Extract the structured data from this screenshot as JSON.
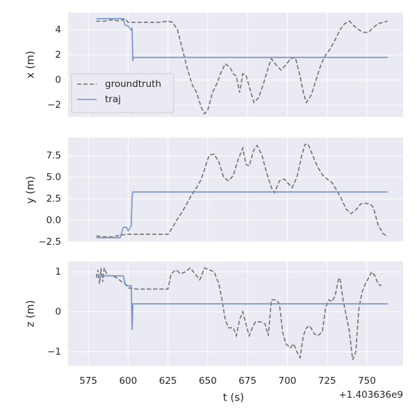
{
  "chart_data": [
    {
      "type": "line",
      "ylabel": "x (m)",
      "legend": "lower left",
      "xlim": [
        562.3,
        772.7
      ],
      "xticks": [
        575,
        600,
        625,
        650,
        675,
        700,
        725,
        750
      ],
      "ylim": [
        -2.94,
        5.39
      ],
      "yticks": [
        {
          "value": -2,
          "label": "−2"
        },
        0,
        2,
        4
      ],
      "grid": true,
      "series": [
        {
          "name": "groundtruth",
          "color": "#707070",
          "dash": true,
          "x": [
            580,
            585,
            590,
            595,
            598,
            600,
            605,
            610,
            615,
            620,
            625,
            628,
            631,
            634,
            637,
            640,
            643,
            646,
            648,
            650,
            653,
            656,
            658,
            661,
            664,
            666,
            668,
            670,
            672,
            674,
            676,
            679,
            682,
            685,
            688,
            690,
            693,
            696,
            699,
            702,
            705,
            708,
            710,
            712,
            715,
            718,
            721,
            724,
            727,
            730,
            733,
            736,
            739,
            742,
            745,
            748,
            751,
            754,
            757,
            760,
            763
          ],
          "values": [
            4.7,
            4.7,
            4.8,
            4.7,
            4.9,
            4.6,
            4.6,
            4.6,
            4.6,
            4.6,
            4.7,
            4.6,
            4.0,
            2.5,
            1.0,
            -0.3,
            -1.0,
            -2.2,
            -2.7,
            -2.4,
            -1.0,
            -0.2,
            0.5,
            1.3,
            1.0,
            0.5,
            0.3,
            -1.0,
            0.5,
            0.4,
            -0.5,
            -1.8,
            -1.4,
            -0.3,
            1.0,
            1.7,
            1.2,
            0.8,
            1.2,
            1.7,
            1.8,
            0.3,
            -1.0,
            -1.8,
            -1.2,
            0,
            1.2,
            2.0,
            2.5,
            3.2,
            4.0,
            4.5,
            4.7,
            4.3,
            4.0,
            3.8,
            3.8,
            4.2,
            4.5,
            4.6,
            4.7
          ]
        },
        {
          "name": "traj",
          "color": "#7190c9",
          "dash": false,
          "x": [
            580,
            597,
            598,
            600,
            602,
            602.5,
            603,
            603.2,
            763
          ],
          "values": [
            4.9,
            4.9,
            4.4,
            4.3,
            4.0,
            4.1,
            1.5,
            1.8,
            1.8
          ]
        }
      ]
    },
    {
      "type": "line",
      "ylabel": "y (m)",
      "xlim": [
        562.3,
        772.7
      ],
      "xticks": [
        575,
        600,
        625,
        650,
        675,
        700,
        725,
        750
      ],
      "ylim": [
        -2.5,
        9.6
      ],
      "yticks": [
        {
          "value": -2.5,
          "label": "−2.5"
        },
        {
          "value": 0,
          "label": "0.0"
        },
        {
          "value": 2.5,
          "label": "2.5"
        },
        {
          "value": 5,
          "label": "5.0"
        },
        {
          "value": 7.5,
          "label": "7.5"
        }
      ],
      "grid": true,
      "series": [
        {
          "color": "#707070",
          "dash": true,
          "x": [
            580,
            585,
            590,
            595,
            600,
            610,
            620,
            625,
            628,
            631,
            634,
            637,
            640,
            643,
            646,
            649,
            651,
            654,
            657,
            660,
            663,
            666,
            669,
            672,
            674,
            676,
            679,
            681,
            684,
            687,
            690,
            692,
            695,
            698,
            701,
            703,
            706,
            709,
            711,
            713,
            716,
            719,
            722,
            725,
            728,
            731,
            734,
            737,
            740,
            743,
            746,
            749,
            752,
            754,
            757,
            760,
            763
          ],
          "values": [
            -1.8,
            -1.9,
            -1.9,
            -1.7,
            -1.6,
            -1.6,
            -1.6,
            -1.6,
            -0.8,
            0.2,
            1.0,
            2.0,
            3.0,
            3.8,
            4.8,
            6.5,
            7.6,
            7.7,
            6.8,
            5.0,
            4.6,
            5.2,
            7.0,
            8.4,
            6.5,
            6.3,
            8.2,
            8.7,
            7.6,
            5.5,
            3.8,
            3.2,
            4.6,
            4.8,
            4.2,
            3.8,
            5.0,
            7.5,
            8.8,
            8.9,
            7.5,
            6.2,
            5.3,
            4.8,
            4.4,
            3.5,
            2.5,
            1.3,
            0.8,
            1.2,
            1.9,
            2.0,
            1.9,
            1.5,
            -0.5,
            -1.5,
            -1.9
          ]
        },
        {
          "color": "#7190c9",
          "dash": false,
          "x": [
            580,
            595,
            597,
            599,
            600,
            602,
            602.5,
            603,
            763
          ],
          "values": [
            -2.0,
            -2.0,
            -0.8,
            -0.8,
            -1.2,
            -0.6,
            2.8,
            3.3,
            3.3
          ]
        }
      ]
    },
    {
      "type": "line",
      "ylabel": "z (m)",
      "xlabel": "t (s)",
      "x_offset_label": "+1.403636e9",
      "xlim": [
        562.3,
        772.7
      ],
      "xticks": [
        575,
        600,
        625,
        650,
        675,
        700,
        725,
        750
      ],
      "ylim": [
        -1.35,
        1.26
      ],
      "yticks": [
        {
          "value": -1,
          "label": "−1"
        },
        0,
        1
      ],
      "grid": true,
      "series": [
        {
          "color": "#707070",
          "dash": true,
          "x": [
            580,
            581,
            582,
            583,
            584,
            585,
            587,
            590,
            593,
            596,
            598,
            600,
            605,
            615,
            625,
            627,
            630,
            633,
            636,
            639,
            642,
            645,
            648,
            651,
            654,
            657,
            659,
            661,
            663,
            666,
            668,
            670,
            672,
            674,
            676,
            678,
            680,
            683,
            686,
            688,
            690,
            693,
            695,
            697,
            699,
            702,
            704,
            706,
            708,
            710,
            712,
            714,
            717,
            719,
            722,
            724,
            726,
            728,
            730,
            732,
            733,
            735,
            737,
            739,
            741,
            743,
            745,
            747,
            749,
            751,
            753,
            755,
            757,
            759
          ],
          "values": [
            0.85,
            1.05,
            0.7,
            1.1,
            0.75,
            1.1,
            0.9,
            0.9,
            0.85,
            0.75,
            0.7,
            0.6,
            0.57,
            0.57,
            0.57,
            0.95,
            1.05,
            0.95,
            1.0,
            1.1,
            0.95,
            0.8,
            1.1,
            1.05,
            1.0,
            0.7,
            0.3,
            -0.2,
            -0.4,
            -0.4,
            -0.6,
            -0.2,
            0.0,
            -0.3,
            -0.6,
            -0.4,
            -0.25,
            -0.25,
            -0.3,
            -0.6,
            0.3,
            0.3,
            0.2,
            -0.5,
            -0.8,
            -0.9,
            -0.8,
            -1.0,
            -1.15,
            -0.6,
            -0.4,
            -0.35,
            -0.55,
            -0.6,
            -0.5,
            0.1,
            0.3,
            0.25,
            0.4,
            0.8,
            0.85,
            0.3,
            -0.1,
            -0.5,
            -1.2,
            -1.0,
            0.1,
            0.5,
            0.7,
            0.85,
            1.0,
            0.9,
            0.7,
            0.65
          ]
        },
        {
          "color": "#7190c9",
          "dash": false,
          "x": [
            580,
            597,
            598,
            600,
            602,
            602.5,
            603,
            763
          ],
          "values": [
            0.9,
            0.9,
            0.7,
            0.65,
            0.65,
            -0.45,
            0.2,
            0.2
          ]
        }
      ]
    }
  ]
}
